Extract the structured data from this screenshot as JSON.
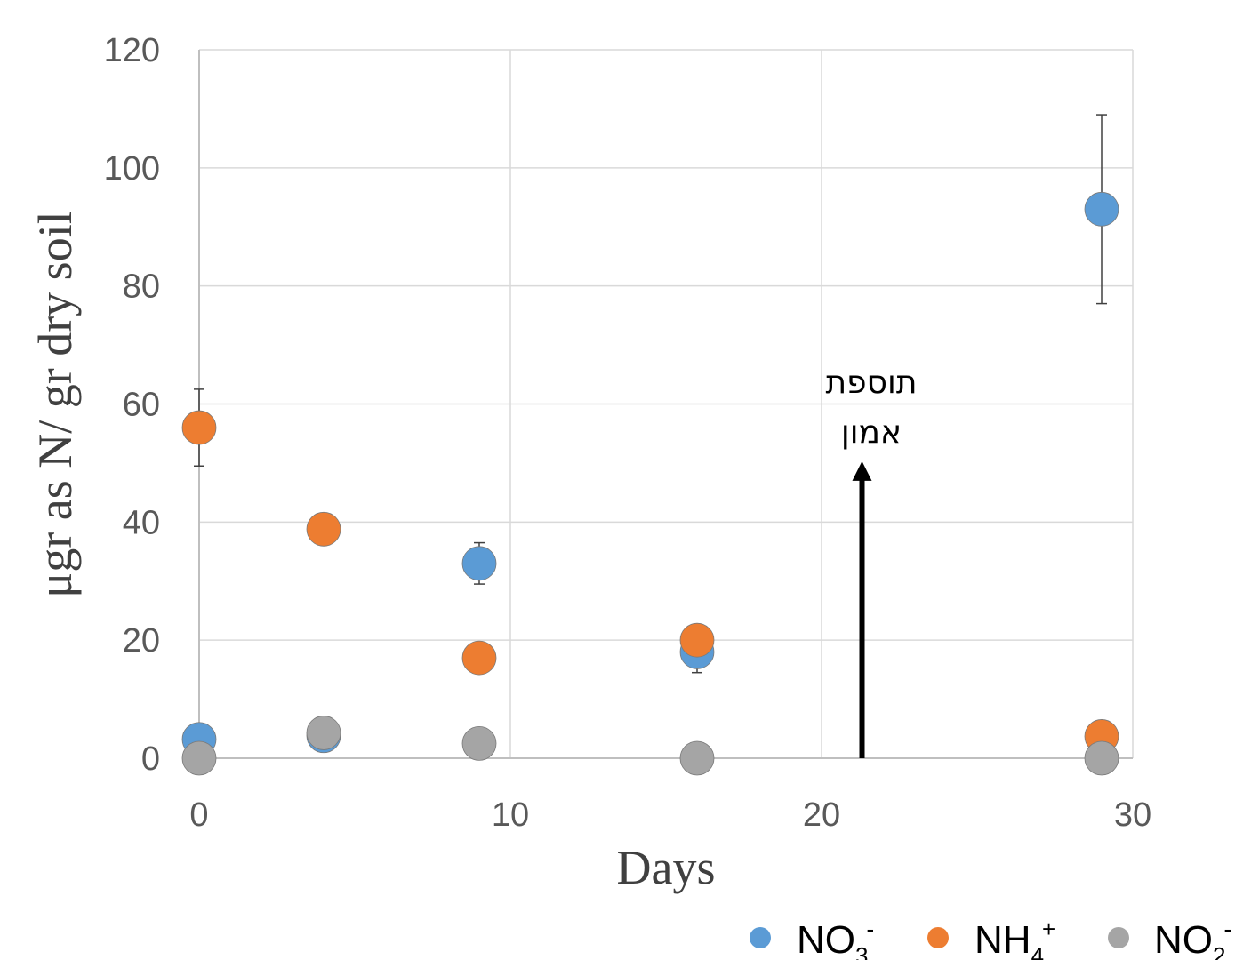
{
  "chart_data": {
    "type": "scatter",
    "title": "",
    "xlabel": "Days",
    "ylabel": "μgr as N/ gr dry soil",
    "xlim": [
      0,
      30
    ],
    "ylim": [
      0,
      120
    ],
    "xticks": [
      0,
      10,
      20,
      30
    ],
    "yticks": [
      0,
      20,
      40,
      60,
      80,
      100,
      120
    ],
    "grid": true,
    "legend_position": "bottom-right",
    "series": [
      {
        "legend": {
          "base": "NO",
          "sub": "3",
          "sup": "-"
        },
        "color": "#5b9bd5",
        "points": [
          {
            "x": 0,
            "y": 3.2
          },
          {
            "x": 4,
            "y": 3.8
          },
          {
            "x": 9,
            "y": 33,
            "err": 3.5
          },
          {
            "x": 16,
            "y": 18,
            "err": 3.5
          },
          {
            "x": 29,
            "y": 93,
            "err": 16
          }
        ]
      },
      {
        "legend": {
          "base": "NH",
          "sub": "4",
          "sup": "+"
        },
        "color": "#ed7d31",
        "points": [
          {
            "x": 0,
            "y": 56,
            "err": 6.5
          },
          {
            "x": 4,
            "y": 38.8
          },
          {
            "x": 9,
            "y": 17
          },
          {
            "x": 16,
            "y": 20
          },
          {
            "x": 29,
            "y": 3.7
          }
        ]
      },
      {
        "legend": {
          "base": "NO",
          "sub": "2",
          "sup": "-"
        },
        "color": "#a5a5a5",
        "points": [
          {
            "x": 0,
            "y": 0
          },
          {
            "x": 4,
            "y": 4.3
          },
          {
            "x": 9,
            "y": 2.5
          },
          {
            "x": 16,
            "y": 0
          },
          {
            "x": 29,
            "y": 0
          }
        ]
      }
    ],
    "annotation": {
      "lines": [
        "תוספת",
        "אמון"
      ],
      "arrow": {
        "x": 21.3,
        "y_from": 0,
        "y_to": 50
      }
    }
  }
}
